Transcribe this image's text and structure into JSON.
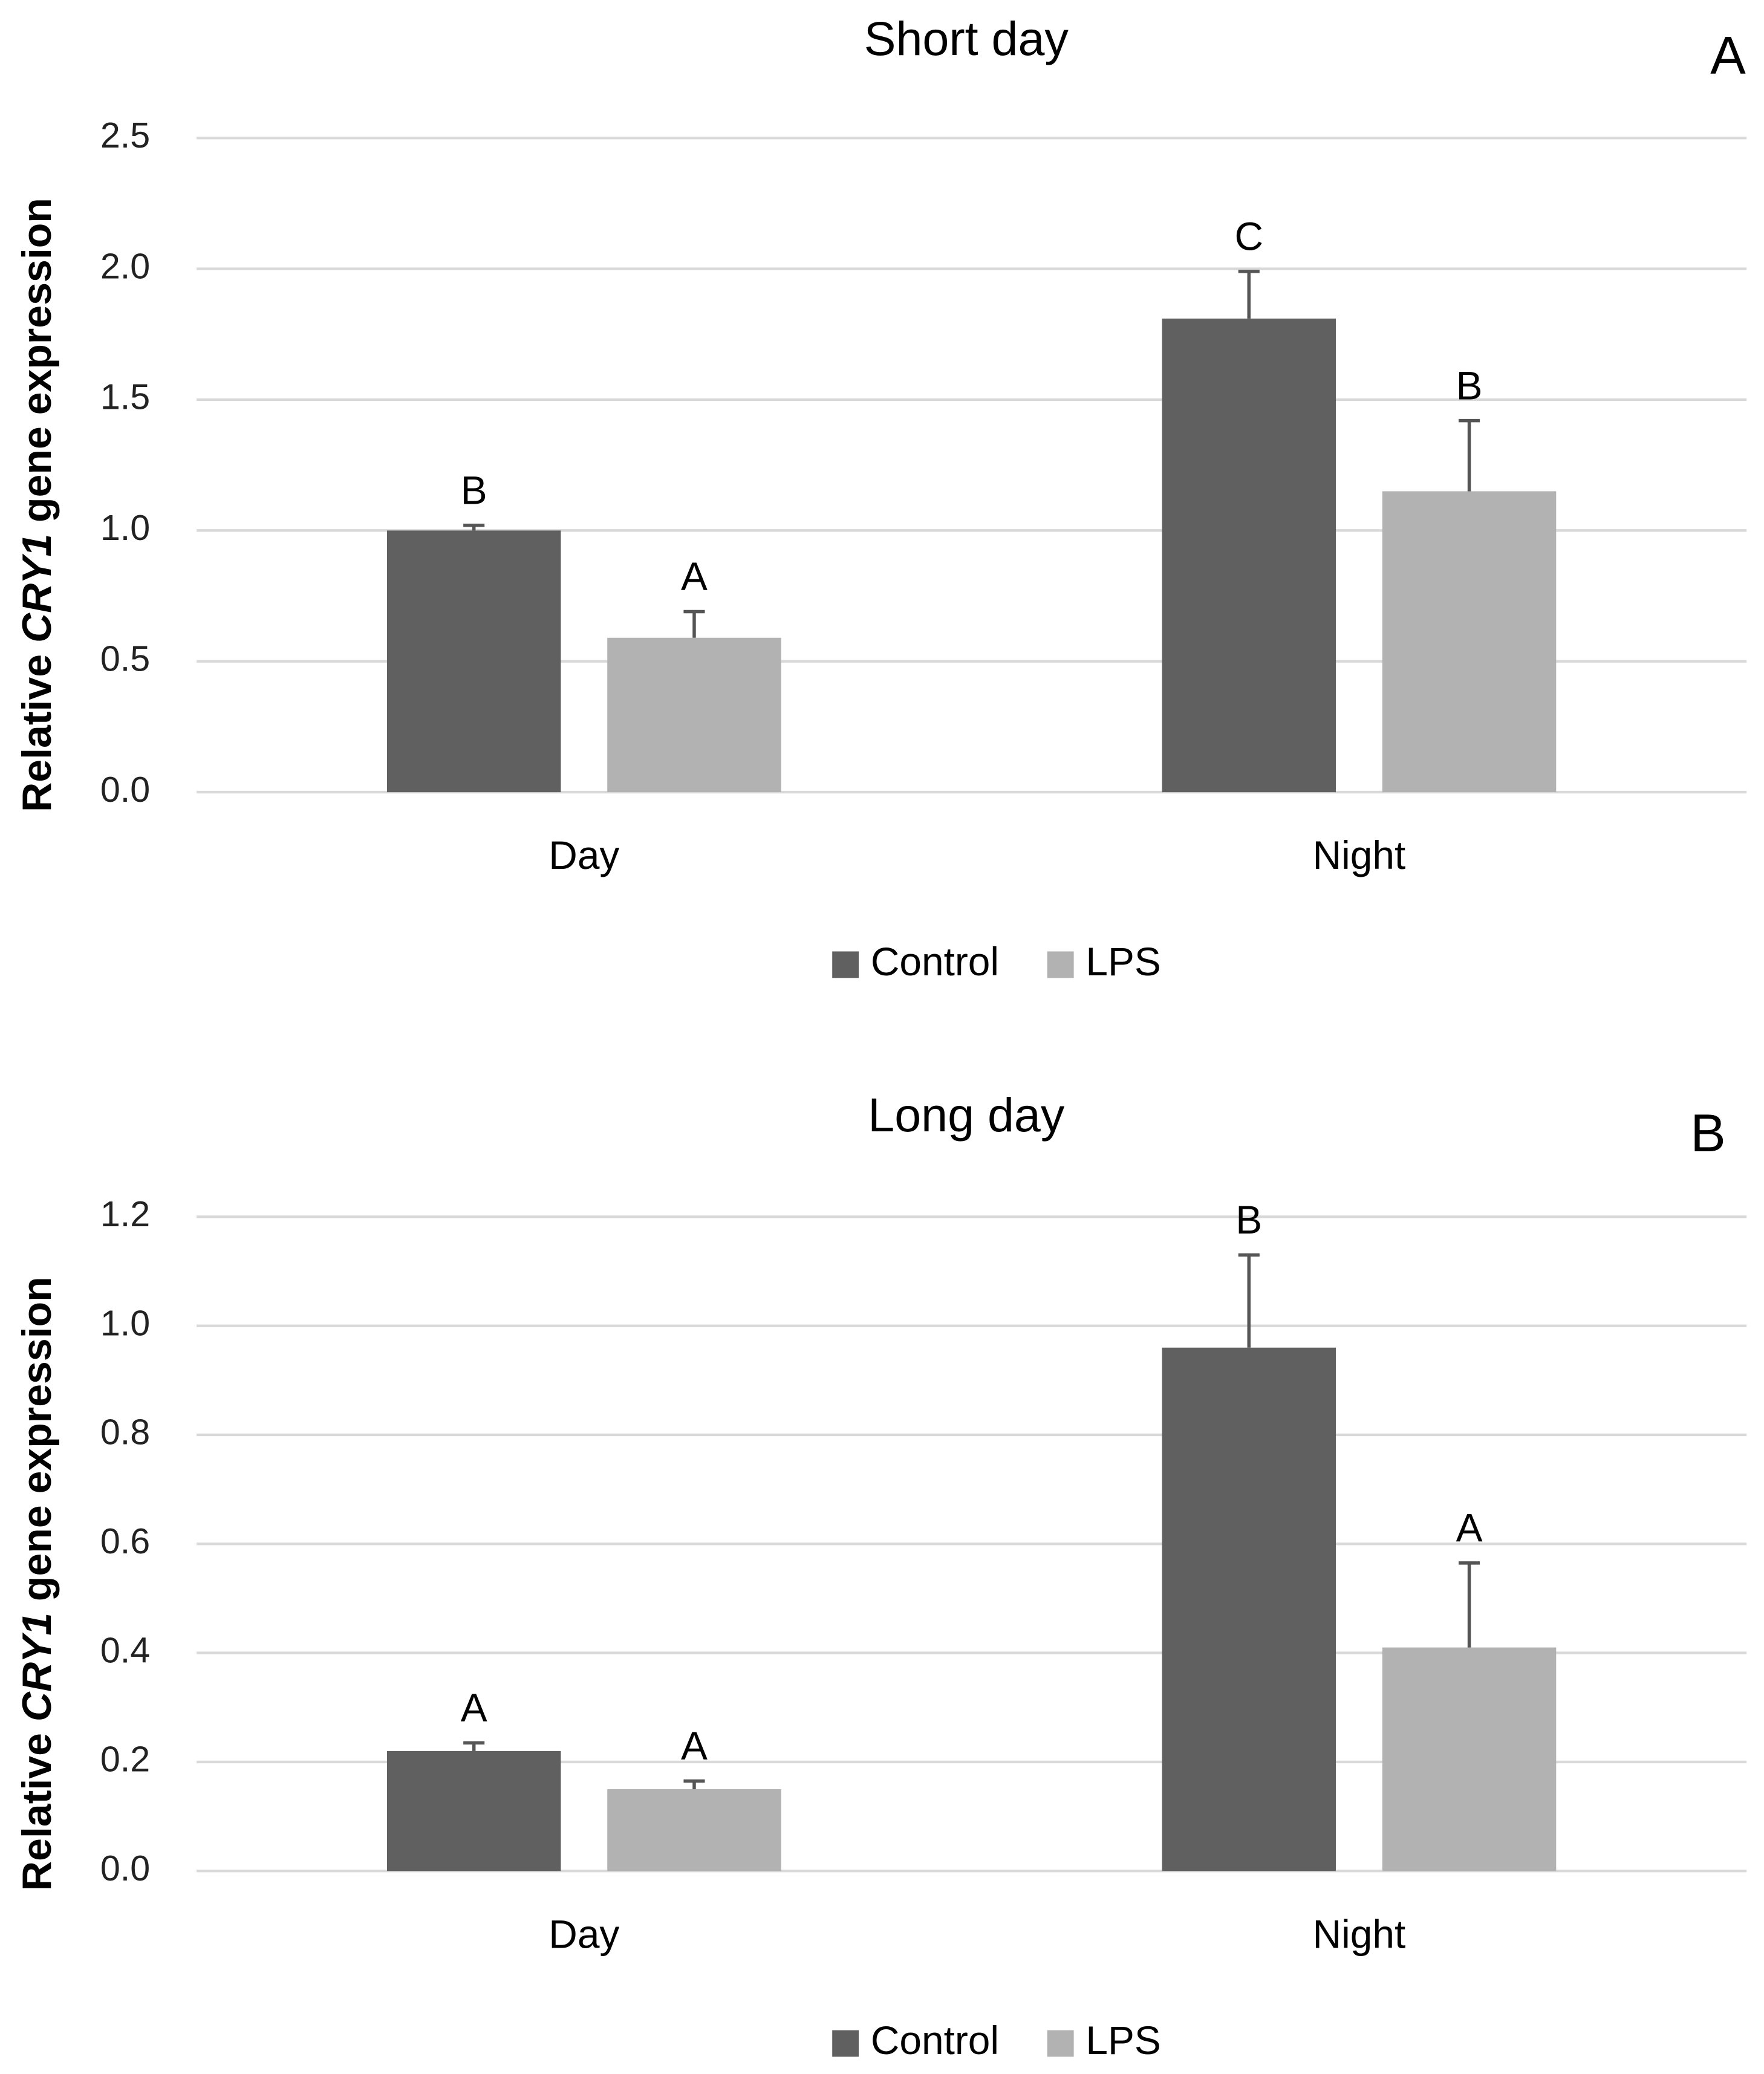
{
  "chart_data": [
    {
      "type": "bar",
      "title": "Short day",
      "panel_label": "A",
      "ylabel": [
        "Relative ",
        "CRY1",
        " gene expression"
      ],
      "categories": [
        "Day",
        "Night"
      ],
      "series": [
        {
          "name": "Control",
          "color": "#606060",
          "values": [
            1.0,
            1.81
          ],
          "errors": [
            0.02,
            0.18
          ],
          "letters": [
            "B",
            "C"
          ]
        },
        {
          "name": "LPS",
          "color": "#b2b2b2",
          "values": [
            0.59,
            1.15
          ],
          "errors": [
            0.1,
            0.27
          ],
          "letters": [
            "A",
            "B"
          ]
        }
      ],
      "ylim": [
        0,
        2.5
      ],
      "yticks": [
        {
          "value": 0,
          "label": "0.0"
        },
        {
          "value": 0.5,
          "label": "0.5"
        },
        {
          "value": 1,
          "label": "1.0"
        },
        {
          "value": 1.5,
          "label": "1.5"
        },
        {
          "value": 2,
          "label": "2.0"
        },
        {
          "value": 2.5,
          "label": "2.5"
        }
      ],
      "grid": true,
      "legend": "bottom"
    },
    {
      "type": "bar",
      "title": "Long day",
      "panel_label": "B",
      "ylabel": [
        "Relative ",
        "CRY1",
        " gene expression"
      ],
      "categories": [
        "Day",
        "Night"
      ],
      "series": [
        {
          "name": "Control",
          "color": "#606060",
          "values": [
            0.22,
            0.96
          ],
          "errors": [
            0.015,
            0.17
          ],
          "letters": [
            "A",
            "B"
          ]
        },
        {
          "name": "LPS",
          "color": "#b2b2b2",
          "values": [
            0.15,
            0.41
          ],
          "errors": [
            0.015,
            0.155
          ],
          "letters": [
            "A",
            "A"
          ]
        }
      ],
      "ylim": [
        0,
        1.2
      ],
      "yticks": [
        {
          "value": 0,
          "label": "0.0"
        },
        {
          "value": 0.2,
          "label": "0.2"
        },
        {
          "value": 0.4,
          "label": "0.4"
        },
        {
          "value": 0.6,
          "label": "0.6"
        },
        {
          "value": 0.8,
          "label": "0.8"
        },
        {
          "value": 1,
          "label": "1.0"
        },
        {
          "value": 1.2,
          "label": "1.2"
        }
      ],
      "grid": true,
      "legend": "bottom"
    }
  ]
}
